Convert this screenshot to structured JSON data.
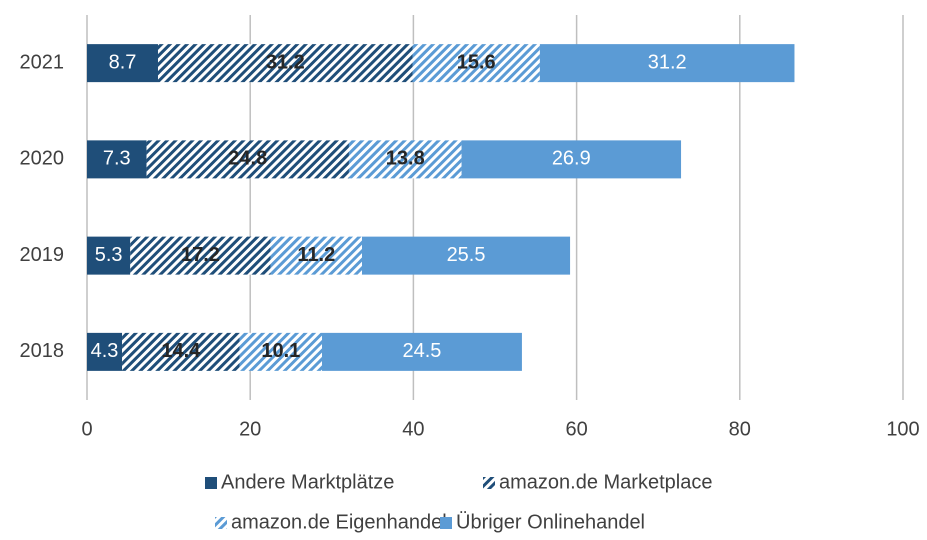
{
  "chart_data": {
    "type": "stacked-bar-horizontal",
    "categories": [
      "2018",
      "2019",
      "2020",
      "2021"
    ],
    "series": [
      {
        "name": "Andere Marktplätze",
        "color": "#1f4e79",
        "pattern": "solid",
        "values": [
          4.3,
          5.3,
          7.3,
          8.7
        ]
      },
      {
        "name": "amazon.de Marketplace",
        "color": "#1f4e79",
        "pattern": "stripes",
        "values": [
          14.4,
          17.2,
          24.8,
          31.2
        ]
      },
      {
        "name": "amazon.de Eigenhandel",
        "color": "#5b9bd5",
        "pattern": "stripes",
        "values": [
          10.1,
          11.2,
          13.8,
          15.6
        ]
      },
      {
        "name": "Übriger Onlinehandel",
        "color": "#5b9bd5",
        "pattern": "solid",
        "values": [
          24.5,
          25.5,
          26.9,
          31.2
        ]
      }
    ],
    "xlim": [
      0,
      100
    ],
    "xticks": [
      0,
      20,
      40,
      60,
      80,
      100
    ],
    "grid": true
  }
}
